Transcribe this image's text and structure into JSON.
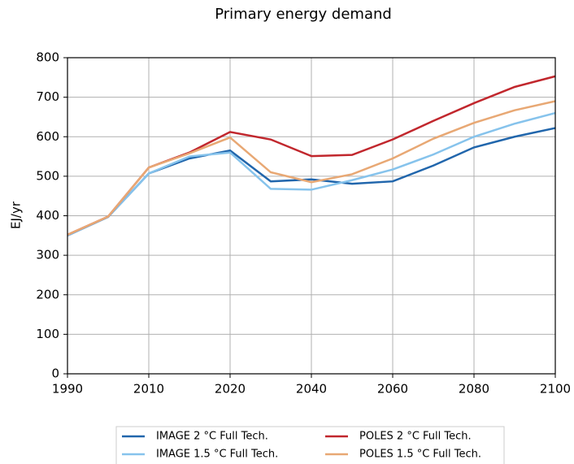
{
  "chart_data": {
    "type": "line",
    "title": "Primary energy demand",
    "y_label": "EJ/yr",
    "categories": [
      "1990",
      null,
      "2010",
      null,
      "2020",
      null,
      "2040",
      null,
      "2060",
      null,
      "2080",
      null,
      "2100"
    ],
    "series": [
      {
        "name": "IMAGE 2 °C Full Tech.",
        "color": "#2166ac",
        "values": [
          350,
          397,
          507,
          545,
          565,
          487,
          492,
          481,
          487,
          527,
          573,
          600,
          622
        ]
      },
      {
        "name": "IMAGE 1.5 °C Full Tech.",
        "color": "#86c3ec",
        "values": [
          350,
          397,
          507,
          550,
          560,
          468,
          466,
          490,
          517,
          555,
          600,
          633,
          660
        ]
      },
      {
        "name": "POLES 2 °C Full Tech.",
        "color": "#c1272d",
        "values": [
          352,
          398,
          522,
          560,
          612,
          593,
          551,
          554,
          593,
          640,
          685,
          726,
          753
        ]
      },
      {
        "name": "POLES 1.5 °C Full Tech.",
        "color": "#e8a874",
        "values": [
          352,
          398,
          522,
          558,
          598,
          510,
          485,
          505,
          545,
          595,
          635,
          667,
          690
        ]
      }
    ],
    "ylim": [
      0,
      800
    ],
    "yticks": [
      0,
      100,
      200,
      300,
      400,
      500,
      600,
      700,
      800
    ],
    "grid": true
  }
}
